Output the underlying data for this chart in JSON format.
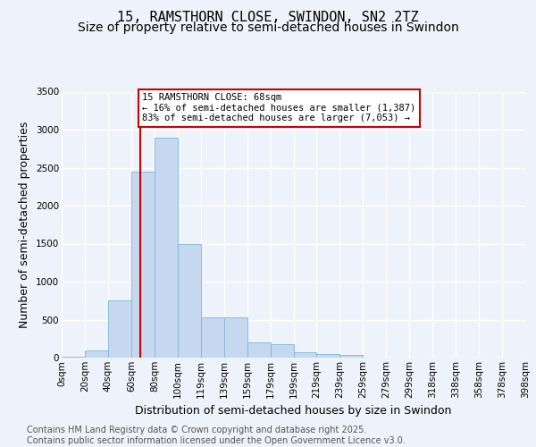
{
  "title_line1": "15, RAMSTHORN CLOSE, SWINDON, SN2 2TZ",
  "title_line2": "Size of property relative to semi-detached houses in Swindon",
  "xlabel": "Distribution of semi-detached houses by size in Swindon",
  "ylabel": "Number of semi-detached properties",
  "bin_labels": [
    "0sqm",
    "20sqm",
    "40sqm",
    "60sqm",
    "80sqm",
    "100sqm",
    "119sqm",
    "139sqm",
    "159sqm",
    "179sqm",
    "199sqm",
    "219sqm",
    "239sqm",
    "259sqm",
    "279sqm",
    "299sqm",
    "318sqm",
    "338sqm",
    "358sqm",
    "378sqm",
    "398sqm"
  ],
  "bar_heights": [
    10,
    100,
    750,
    2450,
    2900,
    1500,
    530,
    530,
    200,
    175,
    70,
    50,
    30,
    5,
    5,
    5,
    0,
    0,
    0,
    0
  ],
  "bar_color": "#c5d8f0",
  "bar_edge_color": "#7ab8d8",
  "vline_color": "#cc0000",
  "annotation_text": "15 RAMSTHORN CLOSE: 68sqm\n← 16% of semi-detached houses are smaller (1,387)\n83% of semi-detached houses are larger (7,053) →",
  "annotation_box_color": "#cc0000",
  "ylim": [
    0,
    3500
  ],
  "yticks": [
    0,
    500,
    1000,
    1500,
    2000,
    2500,
    3000,
    3500
  ],
  "background_color": "#eef2fa",
  "grid_color": "#ffffff",
  "footer_text": "Contains HM Land Registry data © Crown copyright and database right 2025.\nContains public sector information licensed under the Open Government Licence v3.0.",
  "title_fontsize": 11,
  "subtitle_fontsize": 10,
  "axis_label_fontsize": 9,
  "tick_fontsize": 7.5,
  "footer_fontsize": 7,
  "n_bins": 20
}
